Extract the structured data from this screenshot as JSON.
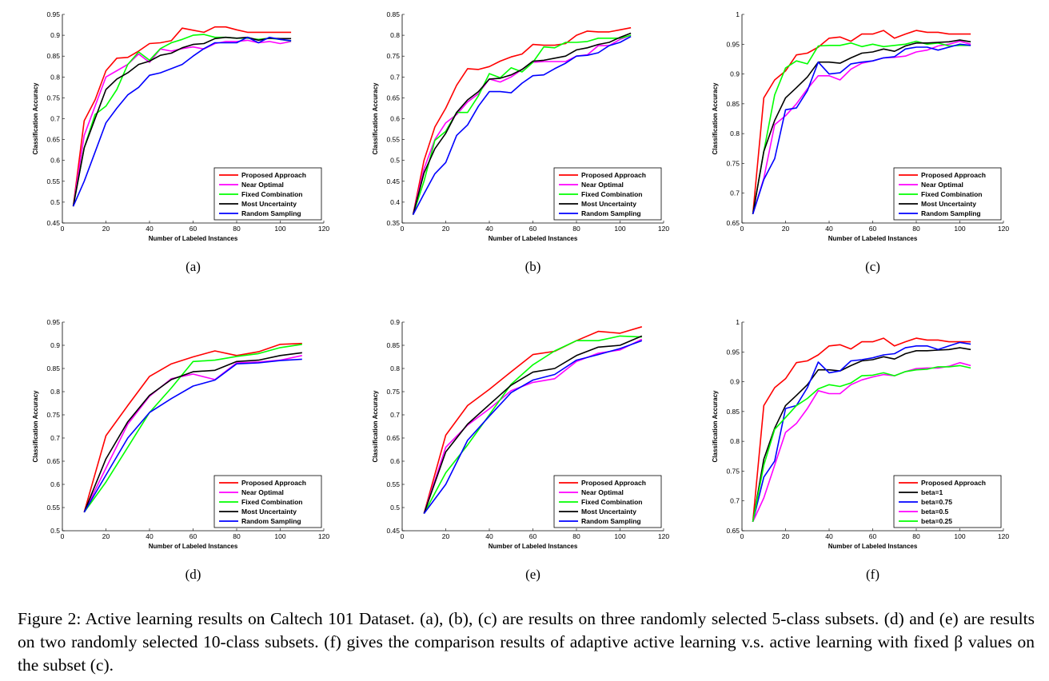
{
  "chart_data": [
    {
      "id": "a",
      "type": "line",
      "panel_label": "(a)",
      "xlabel": "Number of Labeled Instances",
      "ylabel": "Classification Accuracy",
      "xlim": [
        0,
        120
      ],
      "ylim": [
        0.45,
        0.95
      ],
      "xticks": [
        "0",
        "20",
        "40",
        "60",
        "80",
        "100",
        "120"
      ],
      "yticks": [
        "0.45",
        "0.5",
        "0.55",
        "0.6",
        "0.65",
        "0.7",
        "0.75",
        "0.8",
        "0.85",
        "0.9",
        "0.95"
      ],
      "legend_position": "bottom-right",
      "x": [
        5,
        10,
        15,
        20,
        25,
        30,
        35,
        40,
        45,
        50,
        55,
        60,
        65,
        70,
        75,
        80,
        85,
        90,
        95,
        100,
        105
      ],
      "series": [
        {
          "name": "Proposed Approach",
          "color": "#ff0000",
          "values": [
            0.49,
            0.695,
            0.745,
            0.815,
            0.845,
            0.847,
            0.862,
            0.88,
            0.882,
            0.887,
            0.917,
            0.912,
            0.907,
            0.92,
            0.92,
            0.913,
            0.907,
            0.907,
            0.907,
            0.907,
            0.907
          ]
        },
        {
          "name": "Near Optimal",
          "color": "#ff00ff",
          "values": [
            0.49,
            0.66,
            0.73,
            0.8,
            0.815,
            0.83,
            0.855,
            0.835,
            0.867,
            0.862,
            0.868,
            0.872,
            0.867,
            0.88,
            0.885,
            0.885,
            0.888,
            0.882,
            0.885,
            0.88,
            0.885
          ]
        },
        {
          "name": "Fixed Combination",
          "color": "#00ff00",
          "values": [
            0.49,
            0.63,
            0.71,
            0.73,
            0.77,
            0.83,
            0.86,
            0.84,
            0.868,
            0.882,
            0.89,
            0.9,
            0.902,
            0.895,
            0.895,
            0.893,
            0.893,
            0.89,
            0.893,
            0.89,
            0.886
          ]
        },
        {
          "name": "Most Uncertainty",
          "color": "#000000",
          "values": [
            0.49,
            0.63,
            0.7,
            0.77,
            0.795,
            0.81,
            0.83,
            0.838,
            0.852,
            0.857,
            0.87,
            0.878,
            0.88,
            0.892,
            0.895,
            0.893,
            0.895,
            0.888,
            0.893,
            0.892,
            0.892
          ]
        },
        {
          "name": "Random Sampling",
          "color": "#0000ff",
          "values": [
            0.49,
            0.55,
            0.62,
            0.69,
            0.725,
            0.757,
            0.775,
            0.804,
            0.81,
            0.82,
            0.83,
            0.85,
            0.868,
            0.882,
            0.882,
            0.882,
            0.895,
            0.882,
            0.895,
            0.89,
            0.887
          ]
        }
      ]
    },
    {
      "id": "b",
      "type": "line",
      "panel_label": "(b)",
      "xlabel": "Number of Labeled Instances",
      "ylabel": "Classification Accuracy",
      "xlim": [
        0,
        120
      ],
      "ylim": [
        0.35,
        0.85
      ],
      "xticks": [
        "0",
        "20",
        "40",
        "60",
        "80",
        "100",
        "120"
      ],
      "yticks": [
        "0.35",
        "0.4",
        "0.45",
        "0.5",
        "0.55",
        "0.6",
        "0.65",
        "0.7",
        "0.75",
        "0.8",
        "0.85"
      ],
      "legend_position": "bottom-right",
      "x": [
        5,
        10,
        15,
        20,
        25,
        30,
        35,
        40,
        45,
        50,
        55,
        60,
        65,
        70,
        75,
        80,
        85,
        90,
        95,
        100,
        105
      ],
      "series": [
        {
          "name": "Proposed Approach",
          "color": "#ff0000",
          "values": [
            0.37,
            0.5,
            0.58,
            0.625,
            0.68,
            0.72,
            0.718,
            0.725,
            0.738,
            0.748,
            0.755,
            0.778,
            0.776,
            0.776,
            0.78,
            0.8,
            0.81,
            0.808,
            0.808,
            0.813,
            0.818
          ]
        },
        {
          "name": "Near Optimal",
          "color": "#ff00ff",
          "values": [
            0.37,
            0.48,
            0.55,
            0.59,
            0.61,
            0.64,
            0.66,
            0.695,
            0.688,
            0.7,
            0.718,
            0.735,
            0.737,
            0.737,
            0.737,
            0.75,
            0.753,
            0.775,
            0.775,
            0.79,
            0.8
          ]
        },
        {
          "name": "Fixed Combination",
          "color": "#00ff00",
          "values": [
            0.37,
            0.45,
            0.548,
            0.57,
            0.615,
            0.615,
            0.655,
            0.708,
            0.698,
            0.722,
            0.712,
            0.735,
            0.772,
            0.77,
            0.783,
            0.783,
            0.785,
            0.793,
            0.793,
            0.793,
            0.8
          ]
        },
        {
          "name": "Most Uncertainty",
          "color": "#000000",
          "values": [
            0.37,
            0.47,
            0.528,
            0.565,
            0.615,
            0.645,
            0.665,
            0.695,
            0.697,
            0.705,
            0.718,
            0.738,
            0.74,
            0.745,
            0.75,
            0.765,
            0.77,
            0.778,
            0.783,
            0.795,
            0.805
          ]
        },
        {
          "name": "Random Sampling",
          "color": "#0000ff",
          "values": [
            0.37,
            0.42,
            0.468,
            0.495,
            0.56,
            0.585,
            0.63,
            0.665,
            0.665,
            0.662,
            0.685,
            0.703,
            0.705,
            0.72,
            0.733,
            0.75,
            0.752,
            0.758,
            0.775,
            0.783,
            0.797
          ]
        }
      ]
    },
    {
      "id": "c",
      "type": "line",
      "panel_label": "(c)",
      "xlabel": "Number of Labeled Instances",
      "ylabel": "Classification Accuracy",
      "xlim": [
        0,
        120
      ],
      "ylim": [
        0.65,
        1.0
      ],
      "xticks": [
        "0",
        "20",
        "40",
        "60",
        "80",
        "100",
        "120"
      ],
      "yticks": [
        "0.65",
        "0.7",
        "0.75",
        "0.8",
        "0.85",
        "0.9",
        "0.95",
        "1"
      ],
      "legend_position": "bottom-right",
      "x": [
        5,
        10,
        15,
        20,
        25,
        30,
        35,
        40,
        45,
        50,
        55,
        60,
        65,
        70,
        75,
        80,
        85,
        90,
        95,
        100,
        105
      ],
      "series": [
        {
          "name": "Proposed Approach",
          "color": "#ff0000",
          "values": [
            0.665,
            0.86,
            0.89,
            0.905,
            0.932,
            0.935,
            0.945,
            0.96,
            0.962,
            0.955,
            0.967,
            0.967,
            0.973,
            0.96,
            0.967,
            0.973,
            0.97,
            0.97,
            0.967,
            0.967,
            0.967
          ]
        },
        {
          "name": "Near Optimal",
          "color": "#ff00ff",
          "values": [
            0.665,
            0.725,
            0.815,
            0.83,
            0.85,
            0.875,
            0.897,
            0.897,
            0.89,
            0.908,
            0.918,
            0.922,
            0.927,
            0.928,
            0.93,
            0.937,
            0.94,
            0.947,
            0.95,
            0.955,
            0.95
          ]
        },
        {
          "name": "Fixed Combination",
          "color": "#00ff00",
          "values": [
            0.665,
            0.77,
            0.865,
            0.91,
            0.922,
            0.917,
            0.947,
            0.948,
            0.948,
            0.952,
            0.946,
            0.95,
            0.946,
            0.948,
            0.95,
            0.955,
            0.95,
            0.952,
            0.947,
            0.948,
            0.948
          ]
        },
        {
          "name": "Most Uncertainty",
          "color": "#000000",
          "values": [
            0.665,
            0.77,
            0.822,
            0.86,
            0.877,
            0.895,
            0.92,
            0.92,
            0.918,
            0.927,
            0.935,
            0.937,
            0.942,
            0.938,
            0.947,
            0.952,
            0.952,
            0.953,
            0.954,
            0.957,
            0.954
          ]
        },
        {
          "name": "Random Sampling",
          "color": "#0000ff",
          "values": [
            0.665,
            0.723,
            0.758,
            0.84,
            0.843,
            0.872,
            0.92,
            0.9,
            0.902,
            0.917,
            0.92,
            0.922,
            0.927,
            0.929,
            0.942,
            0.945,
            0.945,
            0.94,
            0.945,
            0.95,
            0.948
          ]
        }
      ]
    },
    {
      "id": "d",
      "type": "line",
      "panel_label": "(d)",
      "xlabel": "Number of Labeled Instances",
      "ylabel": "Classification Accuracy",
      "xlim": [
        0,
        120
      ],
      "ylim": [
        0.5,
        0.95
      ],
      "xticks": [
        "0",
        "20",
        "40",
        "60",
        "80",
        "100",
        "120"
      ],
      "yticks": [
        "0.5",
        "0.55",
        "0.6",
        "0.65",
        "0.7",
        "0.75",
        "0.8",
        "0.85",
        "0.9",
        "0.95"
      ],
      "legend_position": "bottom-right",
      "x": [
        10,
        20,
        30,
        40,
        50,
        60,
        70,
        80,
        90,
        100,
        110
      ],
      "series": [
        {
          "name": "Proposed Approach",
          "color": "#ff0000",
          "values": [
            0.54,
            0.705,
            0.77,
            0.833,
            0.86,
            0.875,
            0.888,
            0.878,
            0.886,
            0.902,
            0.904
          ]
        },
        {
          "name": "Near Optimal",
          "color": "#ff00ff",
          "values": [
            0.54,
            0.635,
            0.73,
            0.79,
            0.828,
            0.838,
            0.826,
            0.862,
            0.864,
            0.868,
            0.878
          ]
        },
        {
          "name": "Fixed Combination",
          "color": "#00ff00",
          "values": [
            0.54,
            0.605,
            0.68,
            0.755,
            0.808,
            0.865,
            0.868,
            0.876,
            0.882,
            0.895,
            0.902
          ]
        },
        {
          "name": "Most Uncertainty",
          "color": "#000000",
          "values": [
            0.54,
            0.655,
            0.735,
            0.792,
            0.826,
            0.843,
            0.846,
            0.865,
            0.868,
            0.878,
            0.884
          ]
        },
        {
          "name": "Random Sampling",
          "color": "#0000ff",
          "values": [
            0.54,
            0.62,
            0.7,
            0.755,
            0.785,
            0.812,
            0.825,
            0.86,
            0.862,
            0.867,
            0.87
          ]
        }
      ]
    },
    {
      "id": "e",
      "type": "line",
      "panel_label": "(e)",
      "xlabel": "Number of Labeled Instances",
      "ylabel": "Classification Accuracy",
      "xlim": [
        0,
        120
      ],
      "ylim": [
        0.45,
        0.9
      ],
      "xticks": [
        "0",
        "20",
        "40",
        "60",
        "80",
        "100",
        "120"
      ],
      "yticks": [
        "0.45",
        "0.5",
        "0.55",
        "0.6",
        "0.65",
        "0.7",
        "0.75",
        "0.8",
        "0.85",
        "0.9"
      ],
      "legend_position": "bottom-right",
      "x": [
        10,
        20,
        30,
        40,
        50,
        60,
        70,
        80,
        90,
        100,
        110
      ],
      "series": [
        {
          "name": "Proposed Approach",
          "color": "#ff0000",
          "values": [
            0.487,
            0.656,
            0.72,
            0.755,
            0.793,
            0.83,
            0.837,
            0.86,
            0.88,
            0.876,
            0.89
          ]
        },
        {
          "name": "Near Optimal",
          "color": "#ff00ff",
          "values": [
            0.487,
            0.63,
            0.678,
            0.713,
            0.752,
            0.77,
            0.778,
            0.815,
            0.833,
            0.84,
            0.863
          ]
        },
        {
          "name": "Fixed Combination",
          "color": "#00ff00",
          "values": [
            0.487,
            0.575,
            0.635,
            0.7,
            0.766,
            0.808,
            0.838,
            0.86,
            0.86,
            0.87,
            0.868
          ]
        },
        {
          "name": "Most Uncertainty",
          "color": "#000000",
          "values": [
            0.487,
            0.62,
            0.68,
            0.722,
            0.764,
            0.792,
            0.8,
            0.828,
            0.846,
            0.85,
            0.87
          ]
        },
        {
          "name": "Random Sampling",
          "color": "#0000ff",
          "values": [
            0.487,
            0.55,
            0.645,
            0.697,
            0.748,
            0.775,
            0.787,
            0.818,
            0.83,
            0.843,
            0.86
          ]
        }
      ]
    },
    {
      "id": "f",
      "type": "line",
      "panel_label": "(f)",
      "xlabel": "Number of Labeled Instances",
      "ylabel": "Classification Accuracy",
      "xlim": [
        0,
        120
      ],
      "ylim": [
        0.65,
        1.0
      ],
      "xticks": [
        "0",
        "20",
        "40",
        "60",
        "80",
        "100",
        "120"
      ],
      "yticks": [
        "0.65",
        "0.7",
        "0.75",
        "0.8",
        "0.85",
        "0.9",
        "0.95",
        "1"
      ],
      "legend_position": "bottom-right",
      "x": [
        5,
        10,
        15,
        20,
        25,
        30,
        35,
        40,
        45,
        50,
        55,
        60,
        65,
        70,
        75,
        80,
        85,
        90,
        95,
        100,
        105
      ],
      "series": [
        {
          "name": "Proposed Approach",
          "color": "#ff0000",
          "values": [
            0.665,
            0.86,
            0.89,
            0.905,
            0.932,
            0.935,
            0.945,
            0.96,
            0.962,
            0.955,
            0.967,
            0.967,
            0.973,
            0.96,
            0.967,
            0.973,
            0.97,
            0.97,
            0.967,
            0.967,
            0.967
          ]
        },
        {
          "name": "beta=1",
          "color": "#000000",
          "values": [
            0.665,
            0.77,
            0.822,
            0.86,
            0.877,
            0.895,
            0.92,
            0.92,
            0.918,
            0.927,
            0.935,
            0.937,
            0.942,
            0.938,
            0.947,
            0.952,
            0.952,
            0.953,
            0.954,
            0.957,
            0.954
          ]
        },
        {
          "name": "beta=0.75",
          "color": "#0000ff",
          "values": [
            0.665,
            0.74,
            0.767,
            0.855,
            0.86,
            0.89,
            0.933,
            0.915,
            0.918,
            0.935,
            0.937,
            0.94,
            0.945,
            0.947,
            0.957,
            0.96,
            0.96,
            0.954,
            0.96,
            0.966,
            0.963
          ]
        },
        {
          "name": "beta=0.5",
          "color": "#ff00ff",
          "values": [
            0.665,
            0.705,
            0.76,
            0.815,
            0.83,
            0.855,
            0.885,
            0.88,
            0.88,
            0.895,
            0.903,
            0.908,
            0.912,
            0.91,
            0.917,
            0.922,
            0.923,
            0.923,
            0.926,
            0.932,
            0.927
          ]
        },
        {
          "name": "beta=0.25",
          "color": "#00ff00",
          "values": [
            0.665,
            0.76,
            0.82,
            0.84,
            0.86,
            0.872,
            0.888,
            0.895,
            0.892,
            0.898,
            0.91,
            0.911,
            0.915,
            0.91,
            0.917,
            0.92,
            0.921,
            0.925,
            0.925,
            0.927,
            0.923
          ]
        }
      ]
    }
  ],
  "caption": {
    "text": "Figure 2: Active learning results on Caltech 101 Dataset. (a), (b), (c) are results on three randomly selected 5-class subsets. (d) and (e) are results on two randomly selected 10-class subsets. (f) gives the comparison results of adaptive active learning v.s. active learning with fixed β values on the subset (c)."
  }
}
